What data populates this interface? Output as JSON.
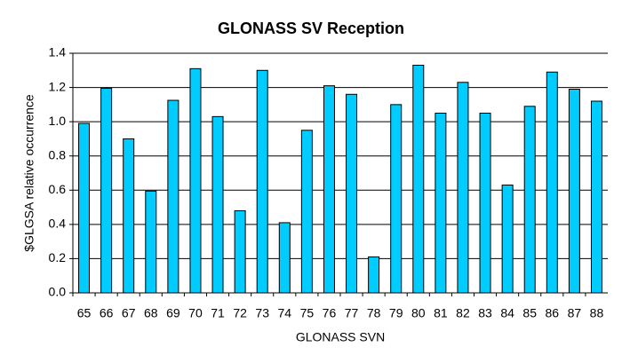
{
  "chart_data": {
    "type": "bar",
    "title": "GLONASS SV Reception",
    "x_label": "GLONASS SVN",
    "y_label": "$GLGSA relative occurrence",
    "categories": [
      "65",
      "66",
      "67",
      "68",
      "69",
      "70",
      "71",
      "72",
      "73",
      "74",
      "75",
      "76",
      "77",
      "78",
      "79",
      "80",
      "81",
      "82",
      "83",
      "84",
      "85",
      "86",
      "87",
      "88"
    ],
    "values": [
      0.99,
      1.195,
      0.9,
      0.595,
      1.125,
      1.31,
      1.03,
      0.48,
      1.3,
      0.41,
      0.95,
      1.21,
      1.16,
      0.21,
      1.1,
      1.33,
      1.05,
      1.23,
      1.05,
      0.63,
      1.09,
      1.29,
      1.19,
      1.12
    ],
    "color": "#00ccff",
    "ylim": [
      0,
      1.4
    ],
    "yticks": [
      {
        "value": 0,
        "label": "0.0"
      },
      0.2,
      0.4,
      0.6,
      0.8,
      {
        "value": 1,
        "label": "1.0"
      },
      1.2,
      1.4
    ],
    "grid": true
  }
}
